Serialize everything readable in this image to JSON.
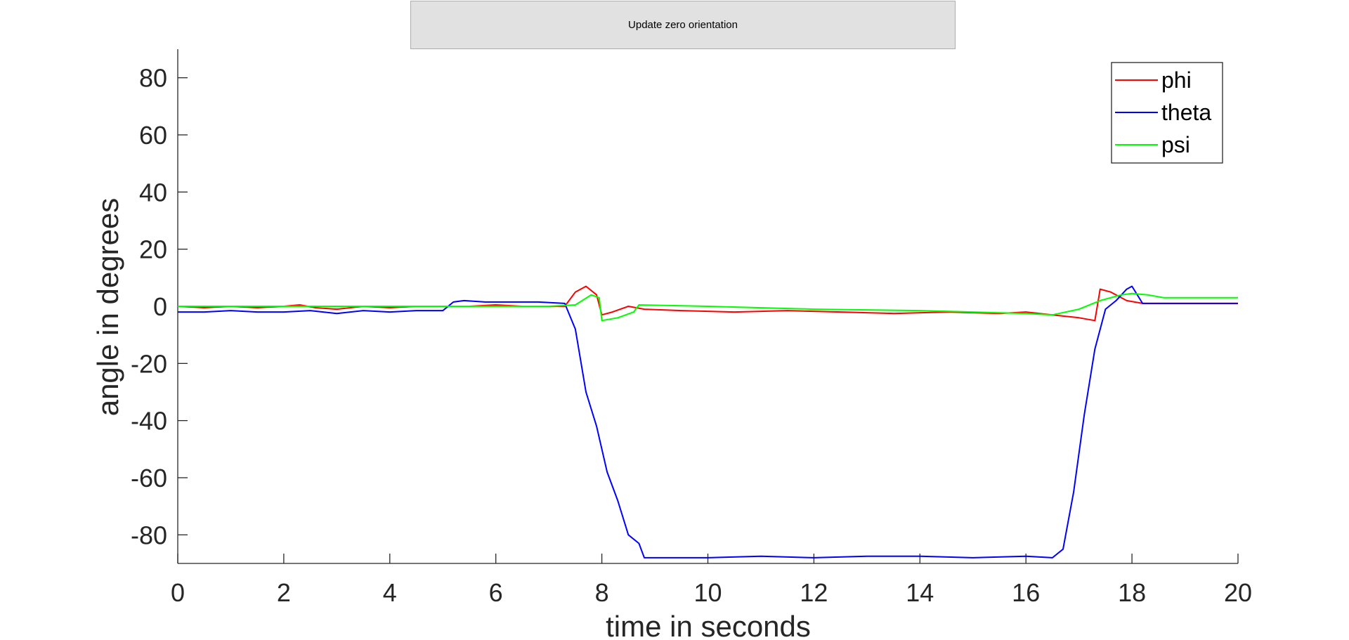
{
  "button": {
    "label": "Update zero orientation"
  },
  "chart_data": {
    "type": "line",
    "title": "",
    "xlabel": "time in seconds",
    "ylabel": "angle in degrees",
    "xlim": [
      0,
      20
    ],
    "ylim": [
      -90,
      90
    ],
    "xticks": [
      0,
      2,
      4,
      6,
      8,
      10,
      12,
      14,
      16,
      18,
      20
    ],
    "yticks": [
      -80,
      -60,
      -40,
      -20,
      0,
      20,
      40,
      60,
      80
    ],
    "grid": false,
    "legend_position": "top-right",
    "series": [
      {
        "name": "phi",
        "color": "#ff0000",
        "x": [
          0,
          0.5,
          1,
          1.5,
          2,
          2.3,
          2.6,
          3,
          3.5,
          4,
          4.5,
          5,
          5.5,
          6,
          6.5,
          7,
          7.3,
          7.5,
          7.7,
          7.9,
          8.0,
          8.2,
          8.5,
          8.8,
          9.5,
          10.5,
          11.5,
          12.5,
          13.5,
          14.5,
          15.5,
          16.0,
          16.5,
          17.0,
          17.3,
          17.4,
          17.6,
          17.9,
          18.2,
          18.6,
          19,
          19.5,
          20
        ],
        "y": [
          0,
          -0.5,
          0,
          -0.5,
          0,
          0.5,
          -0.5,
          -1,
          0,
          -0.5,
          0,
          0,
          0,
          0.5,
          0,
          0,
          0,
          5,
          7,
          4,
          -3,
          -2,
          0,
          -1,
          -1.5,
          -2,
          -1.5,
          -2,
          -2.5,
          -2,
          -2.5,
          -2,
          -3,
          -4,
          -5,
          6,
          5,
          2,
          1,
          1,
          1,
          1,
          1
        ]
      },
      {
        "name": "theta",
        "color": "#0000ff",
        "x": [
          0,
          0.5,
          1,
          1.5,
          2,
          2.5,
          3,
          3.5,
          4,
          4.5,
          5.0,
          5.2,
          5.4,
          5.8,
          6.2,
          6.8,
          7.3,
          7.5,
          7.7,
          7.9,
          8.1,
          8.3,
          8.5,
          8.7,
          8.8,
          9.0,
          9.3,
          10,
          11,
          12,
          13,
          14,
          15,
          16,
          16.5,
          16.7,
          16.9,
          17.1,
          17.3,
          17.5,
          17.7,
          17.9,
          18.0,
          18.2,
          18.6,
          19,
          19.5,
          20
        ],
        "y": [
          -2,
          -2,
          -1.5,
          -2,
          -2,
          -1.5,
          -2.5,
          -1.5,
          -2,
          -1.5,
          -1.5,
          1.5,
          2,
          1.5,
          1.5,
          1.5,
          1,
          -8,
          -30,
          -42,
          -58,
          -68,
          -80,
          -83,
          -88,
          -88,
          -88,
          -88,
          -87.5,
          -88,
          -87.5,
          -87.5,
          -88,
          -87.5,
          -88,
          -85,
          -65,
          -38,
          -15,
          -1,
          2,
          6,
          7,
          1,
          1,
          1,
          1,
          1
        ]
      },
      {
        "name": "psi",
        "color": "#00ff00",
        "x": [
          0,
          2,
          4,
          6,
          7.0,
          7.5,
          7.8,
          7.95,
          8.0,
          8.3,
          8.6,
          8.7,
          10,
          12,
          14,
          16,
          16.5,
          17.0,
          17.4,
          17.8,
          18.0,
          18.3,
          18.6,
          20
        ],
        "y": [
          0,
          0,
          0,
          0,
          0,
          0.5,
          4,
          3,
          -5,
          -4,
          -2,
          0.5,
          0,
          -1,
          -1.5,
          -2.5,
          -3,
          -1,
          2,
          4,
          4.5,
          4,
          3,
          3
        ]
      }
    ]
  }
}
